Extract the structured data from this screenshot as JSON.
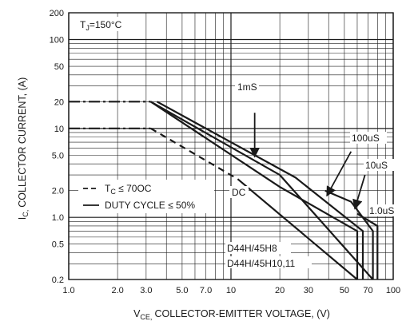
{
  "chart_data": {
    "type": "line",
    "xscale": "log",
    "yscale": "log",
    "xlim": [
      1,
      100
    ],
    "ylim": [
      0.2,
      200
    ],
    "grid": true,
    "xlabel": "COLLECTOR-EMITTER VOLTAGE, (V)",
    "xlabel_prefix": "V",
    "xlabel_sub": "CE,",
    "ylabel": "COLLECTOR CURRENT, (A)",
    "ylabel_prefix": "I",
    "ylabel_sub": "C,",
    "xticks": [
      1,
      2,
      3,
      5,
      7,
      10,
      20,
      30,
      50,
      70,
      100
    ],
    "xtick_labels": [
      "1.0",
      "2.0",
      "3.0",
      "5.0",
      "7.0",
      "10",
      "20",
      "30",
      "50",
      "70",
      "100"
    ],
    "yticks": [
      0.2,
      0.5,
      1,
      2,
      5,
      10,
      20,
      50,
      100,
      200
    ],
    "ytick_labels": [
      "0.2",
      "0.5",
      "1.0",
      "2.0",
      "5.0",
      "10",
      "20",
      "50",
      "100",
      "200"
    ],
    "conditions": {
      "tj_prefix": "T",
      "tj_sub": "J",
      "tj_value": "=150°C"
    },
    "legend": {
      "tc_prefix": "T",
      "tc_sub": "C",
      "tc_value": " ≤ 70OC",
      "duty": "DUTY CYCLE ≤ 50%"
    },
    "annotations": {
      "one_ms": "1mS",
      "hundred_us": "100uS",
      "ten_us": "10uS",
      "one_us": "1.0uS",
      "dc": "DC",
      "d44h8": "D44H/45H8",
      "d44h10": "D44H/45H10,11"
    },
    "series": [
      {
        "key": "dc_h8",
        "style": "dashdot",
        "points": [
          [
            1,
            10
          ],
          [
            3.2,
            10
          ]
        ]
      },
      {
        "key": "dc_h8_tc",
        "style": "dashed",
        "points": [
          [
            3.2,
            10
          ],
          [
            11,
            2.7
          ]
        ]
      },
      {
        "key": "dc_h8_solid",
        "style": "solid",
        "points": [
          [
            11,
            2.7
          ],
          [
            60,
            0.2
          ]
        ]
      },
      {
        "key": "dc_h1011",
        "style": "dashdot",
        "points": [
          [
            1,
            20
          ],
          [
            3.2,
            20
          ]
        ]
      },
      {
        "key": "dc_h1011_solid",
        "style": "solid",
        "points": [
          [
            3.2,
            20
          ],
          [
            20,
            3.0
          ],
          [
            75,
            0.2
          ]
        ]
      },
      {
        "key": "one_ms",
        "style": "solid",
        "points": [
          [
            3.2,
            20
          ],
          [
            20,
            2.2
          ],
          [
            60,
            0.7
          ],
          [
            60,
            0.2
          ]
        ]
      },
      {
        "key": "hundred_us",
        "style": "solid",
        "points": [
          [
            3.5,
            20
          ],
          [
            25,
            2.8
          ],
          [
            65,
            0.7
          ],
          [
            65,
            0.2
          ]
        ]
      },
      {
        "key": "ten_us",
        "style": "solid",
        "points": [
          [
            38,
            2.0
          ],
          [
            55,
            1.5
          ],
          [
            75,
            0.7
          ],
          [
            75,
            0.2
          ]
        ]
      },
      {
        "key": "one_us",
        "style": "solid",
        "points": [
          [
            60,
            1.1
          ],
          [
            80,
            0.8
          ],
          [
            80,
            0.2
          ]
        ]
      }
    ]
  }
}
